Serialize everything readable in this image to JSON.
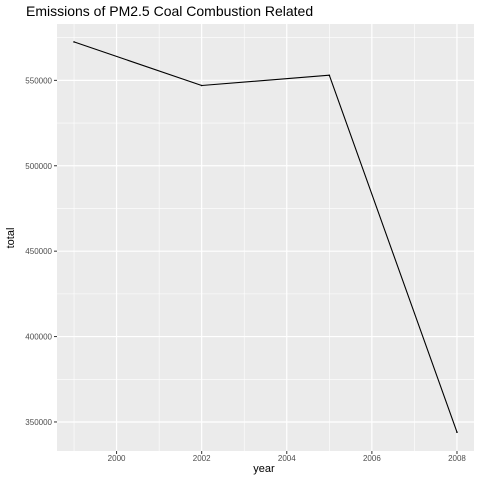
{
  "chart_data": {
    "type": "line",
    "title": "Emissions of PM2.5 Coal Combustion Related",
    "xlabel": "year",
    "ylabel": "total",
    "x": [
      1999,
      2002,
      2005,
      2008
    ],
    "series": [
      {
        "values": [
          572500,
          547000,
          553000,
          344000
        ]
      }
    ],
    "xlim": [
      1998.6,
      2008.4
    ],
    "ylim": [
      333000,
      583000
    ],
    "x_ticks": [
      2000,
      2002,
      2004,
      2006,
      2008
    ],
    "y_ticks": [
      350000,
      400000,
      450000,
      500000,
      550000
    ],
    "grid": true,
    "line_color": "#000000",
    "panel_color": "#ebebeb",
    "grid_color": "#ffffff"
  }
}
